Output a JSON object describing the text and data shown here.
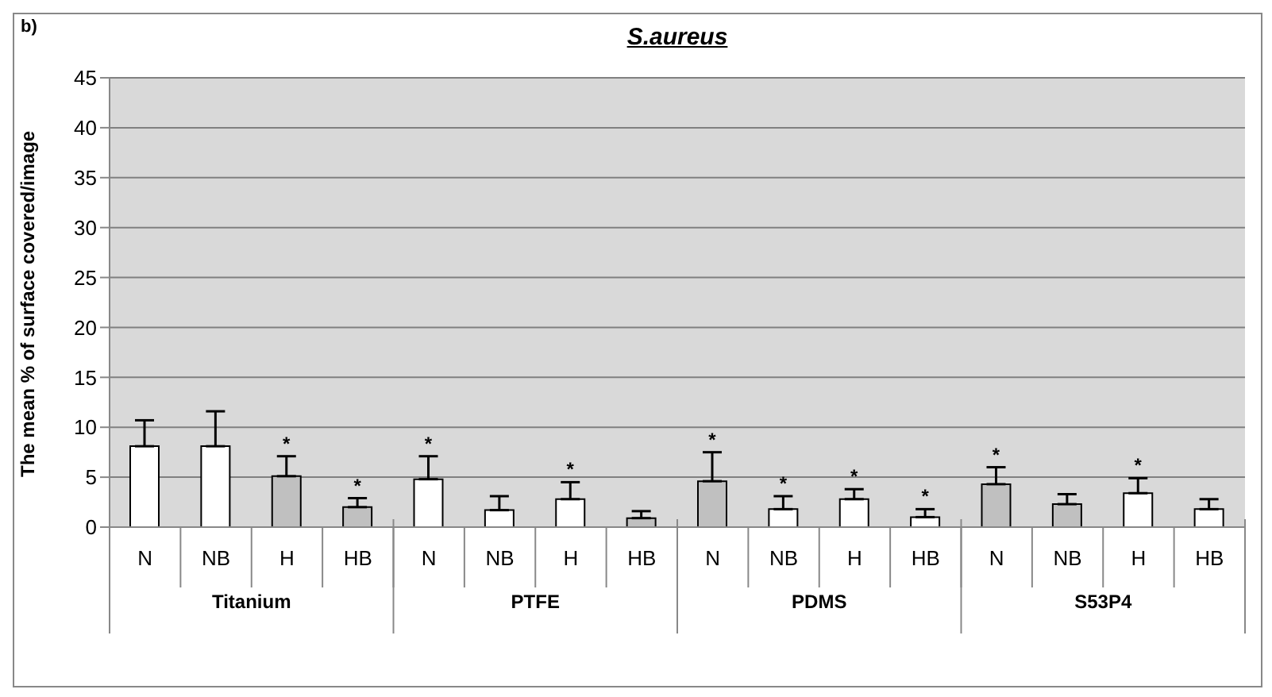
{
  "chart_data": {
    "type": "bar",
    "title": "S.aureus",
    "ylabel": "The mean % of surface covered/image",
    "categories": [
      "N",
      "NB",
      "H",
      "HB",
      "N",
      "NB",
      "H",
      "HB",
      "N",
      "NB",
      "H",
      "HB",
      "N",
      "NB",
      "H",
      "HB"
    ],
    "values": [
      8.1,
      8.1,
      5.1,
      2.0,
      4.8,
      1.7,
      2.8,
      0.9,
      4.6,
      1.8,
      2.8,
      1.0,
      4.3,
      2.3,
      3.4,
      1.8
    ],
    "errors": [
      [
        8.1,
        10.7
      ],
      [
        8.1,
        11.6
      ],
      [
        5.1,
        7.1
      ],
      [
        2.0,
        2.9
      ],
      [
        4.8,
        7.1
      ],
      [
        1.7,
        3.1
      ],
      [
        2.8,
        4.5
      ],
      [
        0.9,
        1.6
      ],
      [
        4.6,
        7.5
      ],
      [
        1.8,
        3.1
      ],
      [
        2.8,
        3.8
      ],
      [
        1.0,
        1.8
      ],
      [
        4.3,
        6.0
      ],
      [
        2.3,
        3.3
      ],
      [
        3.4,
        4.9
      ],
      [
        1.8,
        2.8
      ]
    ],
    "value_labels": [
      null,
      null,
      "*",
      "*",
      "*",
      null,
      "*",
      null,
      "*",
      "*",
      "*",
      "*",
      "*",
      null,
      "*",
      null
    ],
    "colors": [
      "#ffffff",
      "#ffffff",
      "#c0c0c0",
      "#c0c0c0",
      "#ffffff",
      "#ffffff",
      "#ffffff",
      "#c0c0c0",
      "#c0c0c0",
      "#ffffff",
      "#ffffff",
      "#ffffff",
      "#c0c0c0",
      "#c0c0c0",
      "#ffffff",
      "#ffffff"
    ],
    "annotations": [
      "b)",
      "Titanium",
      "PTFE",
      "PDMS",
      "S53P4"
    ],
    "ylim": [
      0,
      45
    ],
    "yticks": [
      0,
      5,
      10,
      15,
      20,
      25,
      30,
      35,
      40,
      45
    ],
    "grid": "y"
  }
}
